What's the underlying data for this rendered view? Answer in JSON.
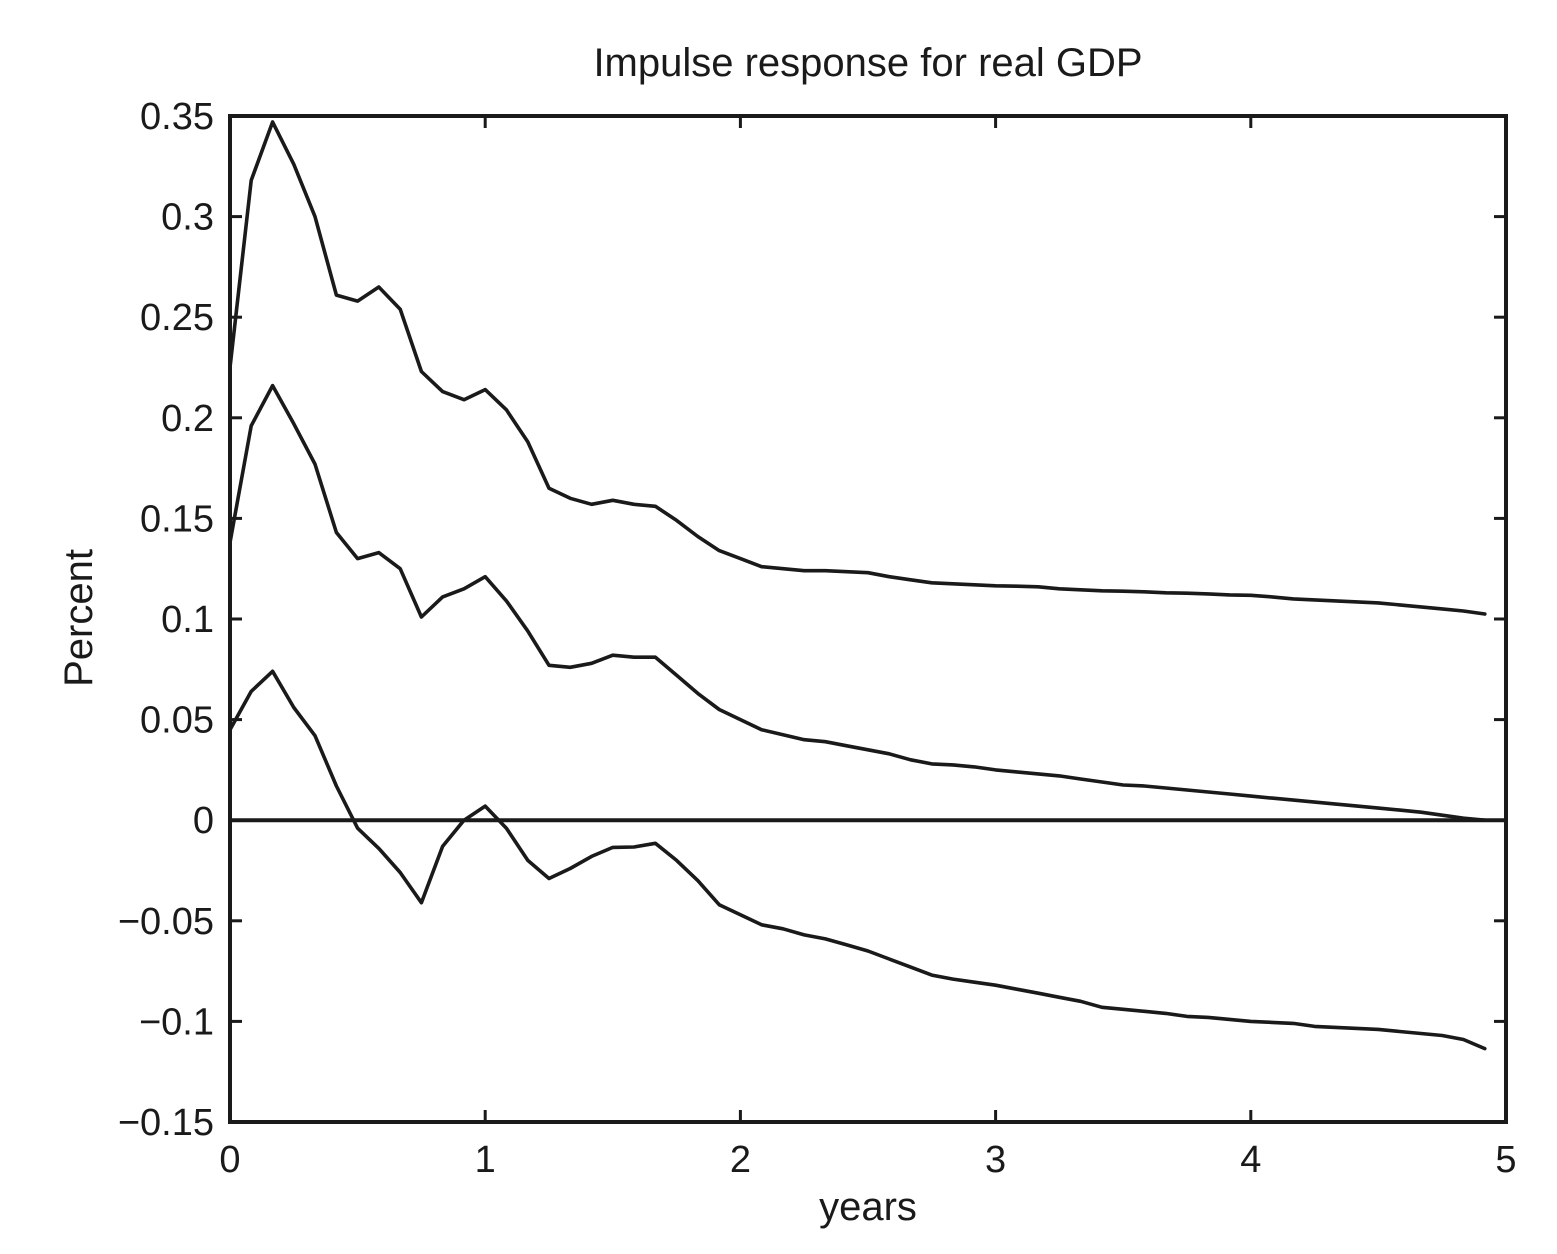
{
  "chart_data": {
    "type": "line",
    "title": "Impulse response for real GDP",
    "xlabel": "years",
    "ylabel": "Percent",
    "xlim": [
      0,
      5
    ],
    "ylim": [
      -0.15,
      0.35
    ],
    "xticks": [
      0,
      1,
      2,
      3,
      4,
      5
    ],
    "xtick_labels": [
      "0",
      "1",
      "2",
      "3",
      "4",
      "5"
    ],
    "yticks": [
      0.35,
      0.3,
      0.25,
      0.2,
      0.15,
      0.1,
      0.05,
      0,
      -0.05,
      -0.1,
      -0.15
    ],
    "ytick_labels": [
      "0.35",
      "0.3",
      "0.25",
      "0.2",
      "0.15",
      "0.1",
      "0.05",
      "0",
      "−0.05",
      "−0.1",
      "−0.15"
    ],
    "grid": false,
    "reference_line_y": 0,
    "x": [
      0,
      0.083,
      0.167,
      0.25,
      0.333,
      0.417,
      0.5,
      0.583,
      0.667,
      0.75,
      0.833,
      0.917,
      1.0,
      1.083,
      1.167,
      1.25,
      1.333,
      1.417,
      1.5,
      1.583,
      1.667,
      1.75,
      1.833,
      1.917,
      2.0,
      2.083,
      2.167,
      2.25,
      2.333,
      2.417,
      2.5,
      2.583,
      2.667,
      2.75,
      2.833,
      2.917,
      3.0,
      3.083,
      3.167,
      3.25,
      3.333,
      3.417,
      3.5,
      3.583,
      3.667,
      3.75,
      3.833,
      3.917,
      4.0,
      4.083,
      4.167,
      4.25,
      4.333,
      4.417,
      4.5,
      4.583,
      4.667,
      4.75,
      4.833,
      4.917
    ],
    "series": [
      {
        "role": "upper",
        "values": [
          0.225,
          0.318,
          0.347,
          0.326,
          0.3,
          0.261,
          0.258,
          0.265,
          0.254,
          0.223,
          0.213,
          0.209,
          0.214,
          0.204,
          0.188,
          0.165,
          0.16,
          0.157,
          0.159,
          0.157,
          0.156,
          0.149,
          0.141,
          0.134,
          0.13,
          0.126,
          0.125,
          0.124,
          0.124,
          0.1235,
          0.123,
          0.121,
          0.1195,
          0.118,
          0.1175,
          0.117,
          0.1165,
          0.1163,
          0.116,
          0.115,
          0.1145,
          0.114,
          0.1138,
          0.1135,
          0.113,
          0.1128,
          0.1125,
          0.112,
          0.1118,
          0.111,
          0.11,
          0.1095,
          0.109,
          0.1085,
          0.108,
          0.107,
          0.106,
          0.105,
          0.104,
          0.1025
        ]
      },
      {
        "role": "median",
        "values": [
          0.138,
          0.196,
          0.216,
          0.197,
          0.177,
          0.143,
          0.13,
          0.133,
          0.125,
          0.101,
          0.111,
          0.115,
          0.121,
          0.109,
          0.094,
          0.077,
          0.076,
          0.078,
          0.082,
          0.081,
          0.081,
          0.072,
          0.063,
          0.055,
          0.05,
          0.045,
          0.0425,
          0.04,
          0.039,
          0.037,
          0.035,
          0.033,
          0.03,
          0.028,
          0.0275,
          0.0265,
          0.025,
          0.024,
          0.023,
          0.022,
          0.0205,
          0.019,
          0.0175,
          0.017,
          0.016,
          0.015,
          0.014,
          0.013,
          0.012,
          0.011,
          0.01,
          0.009,
          0.008,
          0.007,
          0.006,
          0.005,
          0.004,
          0.0025,
          0.001,
          0.0
        ]
      },
      {
        "role": "lower",
        "values": [
          0.045,
          0.064,
          0.074,
          0.056,
          0.042,
          0.017,
          -0.004,
          -0.014,
          -0.026,
          -0.041,
          -0.013,
          0.0,
          0.007,
          -0.004,
          -0.02,
          -0.029,
          -0.024,
          -0.018,
          -0.0135,
          -0.0133,
          -0.0115,
          -0.02,
          -0.03,
          -0.042,
          -0.047,
          -0.052,
          -0.054,
          -0.057,
          -0.059,
          -0.062,
          -0.065,
          -0.069,
          -0.073,
          -0.077,
          -0.079,
          -0.0805,
          -0.082,
          -0.084,
          -0.086,
          -0.088,
          -0.09,
          -0.093,
          -0.094,
          -0.095,
          -0.096,
          -0.0975,
          -0.098,
          -0.099,
          -0.1,
          -0.1005,
          -0.101,
          -0.1025,
          -0.103,
          -0.1035,
          -0.104,
          -0.105,
          -0.106,
          -0.107,
          -0.109,
          -0.1135
        ]
      }
    ]
  }
}
